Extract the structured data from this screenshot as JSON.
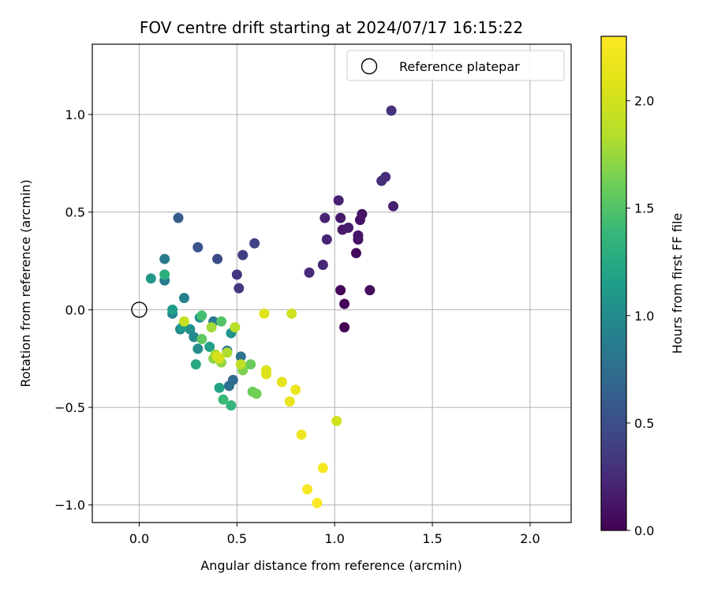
{
  "chart_data": {
    "type": "scatter",
    "title": "FOV centre drift starting at 2024/07/17 16:15:22",
    "xlabel": "Angular distance from reference (arcmin)",
    "ylabel": "Rotation from reference (arcmin)",
    "xlim": [
      -0.24,
      2.21
    ],
    "ylim": [
      -1.09,
      1.36
    ],
    "x_ticks": [
      0.0,
      0.5,
      1.0,
      1.5,
      2.0
    ],
    "x_tick_labels": [
      "0.0",
      "0.5",
      "1.0",
      "1.5",
      "2.0"
    ],
    "y_ticks": [
      -1.0,
      -0.5,
      0.0,
      0.5,
      1.0
    ],
    "y_tick_labels": [
      "−1.0",
      "−0.5",
      "0.0",
      "0.5",
      "1.0"
    ],
    "grid": true,
    "legend": {
      "placement": "top-right",
      "entries": [
        "Reference platepar"
      ]
    },
    "reference_point": {
      "x": 0.0,
      "y": 0.0,
      "label": "Reference platepar",
      "marker": "hollow-circle"
    },
    "colorbar": {
      "label": "Hours from first FF file",
      "range": [
        0.0,
        2.3
      ],
      "ticks": [
        0.0,
        0.5,
        1.0,
        1.5,
        2.0
      ],
      "tick_labels": [
        "0.0",
        "0.5",
        "1.0",
        "1.5",
        "2.0"
      ],
      "colormap": "viridis"
    },
    "series": [
      {
        "values": [
          {
            "x": 1.05,
            "y": -0.09,
            "c": 0.0
          },
          {
            "x": 1.03,
            "y": 0.1,
            "c": 0.02
          },
          {
            "x": 1.05,
            "y": 0.03,
            "c": 0.03
          },
          {
            "x": 1.11,
            "y": 0.29,
            "c": 0.05
          },
          {
            "x": 1.18,
            "y": 0.1,
            "c": 0.07
          },
          {
            "x": 1.12,
            "y": 0.36,
            "c": 0.08
          },
          {
            "x": 1.13,
            "y": 0.46,
            "c": 0.1
          },
          {
            "x": 1.14,
            "y": 0.49,
            "c": 0.11
          },
          {
            "x": 1.12,
            "y": 0.38,
            "c": 0.12
          },
          {
            "x": 1.03,
            "y": 0.47,
            "c": 0.14
          },
          {
            "x": 1.04,
            "y": 0.41,
            "c": 0.15
          },
          {
            "x": 1.07,
            "y": 0.42,
            "c": 0.16
          },
          {
            "x": 1.3,
            "y": 0.53,
            "c": 0.18
          },
          {
            "x": 1.02,
            "y": 0.56,
            "c": 0.19
          },
          {
            "x": 0.95,
            "y": 0.47,
            "c": 0.21
          },
          {
            "x": 0.96,
            "y": 0.36,
            "c": 0.22
          },
          {
            "x": 0.94,
            "y": 0.23,
            "c": 0.23
          },
          {
            "x": 0.87,
            "y": 0.19,
            "c": 0.25
          },
          {
            "x": 1.26,
            "y": 0.68,
            "c": 0.26
          },
          {
            "x": 1.24,
            "y": 0.66,
            "c": 0.27
          },
          {
            "x": 1.29,
            "y": 1.02,
            "c": 0.29
          },
          {
            "x": 0.5,
            "y": 0.18,
            "c": 0.33
          },
          {
            "x": 0.51,
            "y": 0.11,
            "c": 0.35
          },
          {
            "x": 0.53,
            "y": 0.28,
            "c": 0.38
          },
          {
            "x": 0.59,
            "y": 0.34,
            "c": 0.42
          },
          {
            "x": 0.4,
            "y": 0.26,
            "c": 0.48
          },
          {
            "x": 0.3,
            "y": 0.32,
            "c": 0.55
          },
          {
            "x": 0.2,
            "y": 0.47,
            "c": 0.6
          },
          {
            "x": 0.48,
            "y": -0.36,
            "c": 0.72
          },
          {
            "x": 0.46,
            "y": -0.39,
            "c": 0.75
          },
          {
            "x": 0.52,
            "y": -0.24,
            "c": 0.78
          },
          {
            "x": 0.45,
            "y": -0.21,
            "c": 0.8
          },
          {
            "x": 0.38,
            "y": -0.06,
            "c": 0.82
          },
          {
            "x": 0.13,
            "y": 0.26,
            "c": 0.85
          },
          {
            "x": 0.13,
            "y": 0.15,
            "c": 0.87
          },
          {
            "x": 0.23,
            "y": 0.06,
            "c": 0.9
          },
          {
            "x": 0.17,
            "y": -0.02,
            "c": 0.92
          },
          {
            "x": 0.21,
            "y": -0.1,
            "c": 0.95
          },
          {
            "x": 0.28,
            "y": -0.14,
            "c": 0.98
          },
          {
            "x": 0.3,
            "y": -0.2,
            "c": 1.0
          },
          {
            "x": 0.26,
            "y": -0.1,
            "c": 1.02
          },
          {
            "x": 0.31,
            "y": -0.04,
            "c": 1.05
          },
          {
            "x": 0.47,
            "y": -0.12,
            "c": 1.08
          },
          {
            "x": 0.06,
            "y": 0.16,
            "c": 1.1
          },
          {
            "x": 0.22,
            "y": -0.09,
            "c": 1.12
          },
          {
            "x": 0.17,
            "y": 0.0,
            "c": 1.15
          },
          {
            "x": 0.36,
            "y": -0.19,
            "c": 1.18
          },
          {
            "x": 0.41,
            "y": -0.4,
            "c": 1.2
          },
          {
            "x": 0.29,
            "y": -0.28,
            "c": 1.25
          },
          {
            "x": 0.13,
            "y": 0.18,
            "c": 1.3
          },
          {
            "x": 0.47,
            "y": -0.49,
            "c": 1.35
          },
          {
            "x": 0.43,
            "y": -0.46,
            "c": 1.4
          },
          {
            "x": 0.32,
            "y": -0.03,
            "c": 1.45
          },
          {
            "x": 0.42,
            "y": -0.06,
            "c": 1.5
          },
          {
            "x": 0.32,
            "y": -0.15,
            "c": 1.55
          },
          {
            "x": 0.57,
            "y": -0.28,
            "c": 1.58
          },
          {
            "x": 0.58,
            "y": -0.42,
            "c": 1.6
          },
          {
            "x": 0.6,
            "y": -0.43,
            "c": 1.62
          },
          {
            "x": 0.53,
            "y": -0.31,
            "c": 1.65
          },
          {
            "x": 0.38,
            "y": -0.25,
            "c": 1.7
          },
          {
            "x": 0.42,
            "y": -0.27,
            "c": 1.72
          },
          {
            "x": 0.37,
            "y": -0.09,
            "c": 1.78
          },
          {
            "x": 0.39,
            "y": -0.23,
            "c": 1.8
          },
          {
            "x": 0.45,
            "y": -0.22,
            "c": 1.82
          },
          {
            "x": 0.49,
            "y": -0.09,
            "c": 1.85
          },
          {
            "x": 0.52,
            "y": -0.28,
            "c": 1.9
          },
          {
            "x": 0.23,
            "y": -0.06,
            "c": 1.95
          },
          {
            "x": 0.78,
            "y": -0.02,
            "c": 1.98
          },
          {
            "x": 1.01,
            "y": -0.57,
            "c": 2.0
          },
          {
            "x": 0.41,
            "y": -0.25,
            "c": 2.02
          },
          {
            "x": 0.4,
            "y": -0.24,
            "c": 2.04
          },
          {
            "x": 0.65,
            "y": -0.31,
            "c": 2.06
          },
          {
            "x": 0.65,
            "y": -0.33,
            "c": 2.08
          },
          {
            "x": 0.64,
            "y": -0.02,
            "c": 2.1
          },
          {
            "x": 0.73,
            "y": -0.37,
            "c": 2.12
          },
          {
            "x": 0.77,
            "y": -0.47,
            "c": 2.15
          },
          {
            "x": 0.8,
            "y": -0.41,
            "c": 2.17
          },
          {
            "x": 0.83,
            "y": -0.64,
            "c": 2.2
          },
          {
            "x": 0.94,
            "y": -0.81,
            "c": 2.24
          },
          {
            "x": 0.86,
            "y": -0.92,
            "c": 2.26
          },
          {
            "x": 0.91,
            "y": -0.99,
            "c": 2.28
          }
        ]
      }
    ]
  }
}
